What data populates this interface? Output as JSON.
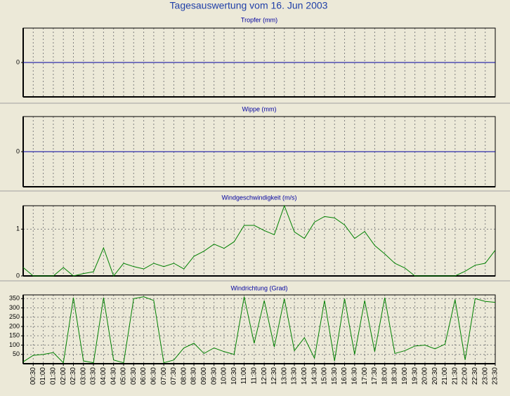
{
  "title": "Tagesauswertung vom 16. Jun 2003",
  "chart_data": [
    {
      "type": "line",
      "title": "Tropfer (mm)",
      "color": "#0000a0",
      "values": [
        0,
        0,
        0,
        0,
        0,
        0,
        0,
        0,
        0,
        0,
        0,
        0,
        0,
        0,
        0,
        0,
        0,
        0,
        0,
        0,
        0,
        0,
        0,
        0,
        0,
        0,
        0,
        0,
        0,
        0,
        0,
        0,
        0,
        0,
        0,
        0,
        0,
        0,
        0,
        0,
        0,
        0,
        0,
        0,
        0,
        0,
        0,
        0
      ],
      "ylim": [
        -1,
        1
      ],
      "yticks": [
        0
      ],
      "grid": true
    },
    {
      "type": "line",
      "title": "Wippe (mm)",
      "color": "#0000a0",
      "values": [
        0,
        0,
        0,
        0,
        0,
        0,
        0,
        0,
        0,
        0,
        0,
        0,
        0,
        0,
        0,
        0,
        0,
        0,
        0,
        0,
        0,
        0,
        0,
        0,
        0,
        0,
        0,
        0,
        0,
        0,
        0,
        0,
        0,
        0,
        0,
        0,
        0,
        0,
        0,
        0,
        0,
        0,
        0,
        0,
        0,
        0,
        0,
        0
      ],
      "ylim": [
        -1,
        1
      ],
      "yticks": [
        0
      ],
      "grid": true
    },
    {
      "type": "line",
      "title": "Windgeschwindigkeit (m/s)",
      "color": "#008000",
      "values": [
        0.18,
        0,
        0,
        0,
        0.18,
        0,
        0.05,
        0.09,
        0.6,
        0,
        0.27,
        0.2,
        0.15,
        0.27,
        0.2,
        0.27,
        0.15,
        0.42,
        0.53,
        0.68,
        0.59,
        0.73,
        1.08,
        1.08,
        0.97,
        0.88,
        1.5,
        0.94,
        0.8,
        1.15,
        1.27,
        1.24,
        1.09,
        0.8,
        0.95,
        0.65,
        0.47,
        0.27,
        0.17,
        0,
        0,
        0,
        0,
        0,
        0.1,
        0.23,
        0.27,
        0.55
      ],
      "ylim": [
        0,
        1.5
      ],
      "yticks": [
        0,
        1
      ],
      "grid": true
    },
    {
      "type": "line",
      "title": "Windrichtung (Grad)",
      "color": "#008000",
      "categories": [
        null,
        "00:30",
        "01:00",
        "01:30",
        "02:00",
        "02:30",
        "03:00",
        "03:30",
        "04:00",
        "04:30",
        "05:00",
        "05:30",
        "06:00",
        "06:30",
        "07:00",
        "07:30",
        "08:00",
        "08:30",
        "09:00",
        "09:30",
        "10:00",
        "10:30",
        "11:00",
        "11:30",
        "12:00",
        "12:30",
        "13:00",
        "13:30",
        "14:00",
        "14:30",
        "15:00",
        "15:30",
        "16:00",
        "16:30",
        "17:00",
        "17:30",
        "18:00",
        "18:30",
        "19:00",
        "19:30",
        "20:00",
        "20:30",
        "21:00",
        "21:30",
        "22:00",
        "22:30",
        "23:00",
        "23:30"
      ],
      "values": [
        10,
        45,
        50,
        60,
        5,
        355,
        15,
        5,
        355,
        20,
        5,
        350,
        360,
        340,
        5,
        20,
        85,
        110,
        55,
        85,
        65,
        50,
        360,
        110,
        340,
        90,
        350,
        70,
        140,
        30,
        340,
        15,
        350,
        50,
        340,
        65,
        355,
        55,
        70,
        95,
        100,
        80,
        105,
        345,
        20,
        350,
        335,
        330
      ],
      "ylim": [
        0,
        370
      ],
      "yticks": [
        50,
        100,
        150,
        200,
        250,
        300,
        350
      ],
      "grid": true
    }
  ]
}
